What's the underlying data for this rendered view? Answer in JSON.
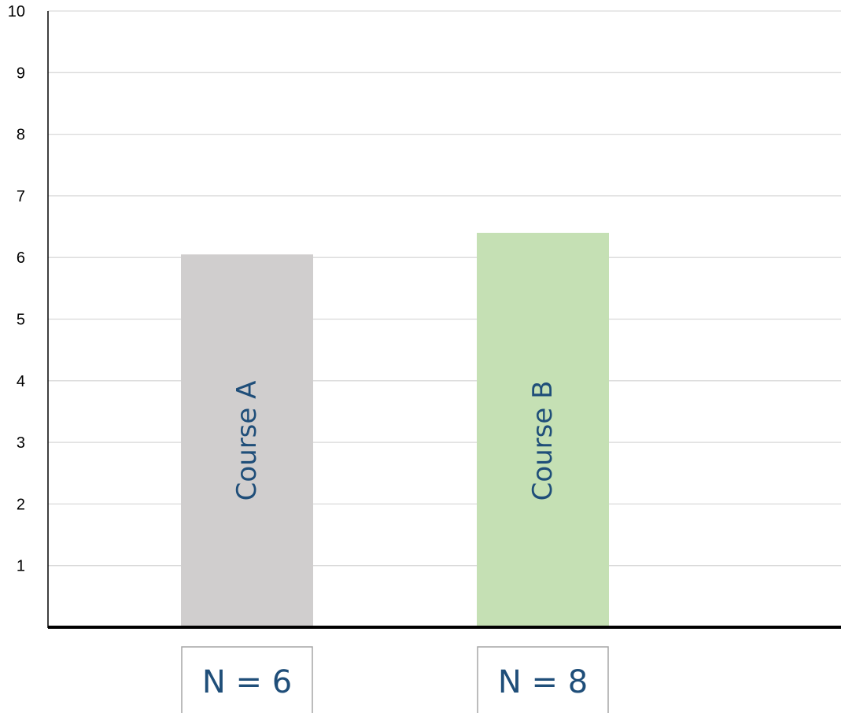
{
  "chart_data": {
    "type": "bar",
    "title": "",
    "xlabel": "",
    "ylabel": "",
    "ylim": [
      0,
      10
    ],
    "yticks": [
      "1",
      "2",
      "3",
      "4",
      "5",
      "6",
      "7",
      "8",
      "9",
      "10"
    ],
    "grid": true,
    "legend": "none",
    "categories": [
      "Course A",
      "Course B"
    ],
    "values": [
      6.05,
      6.4
    ],
    "colors": [
      "#d0cece",
      "#c5e0b4"
    ],
    "sample_sizes": [
      "N = 6",
      "N = 8"
    ]
  }
}
